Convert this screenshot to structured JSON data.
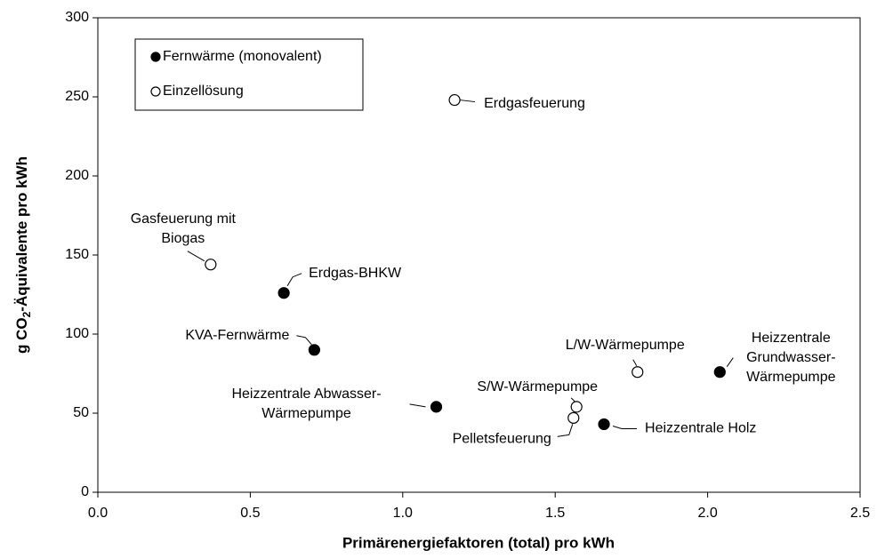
{
  "chart_data": {
    "type": "scatter",
    "xlabel": "Primärenergiefaktoren (total) pro kWh",
    "ylabel": [
      "g CO",
      "2",
      "-Äquivalente pro kWh"
    ],
    "xlim": [
      0,
      2.5
    ],
    "ylim": [
      0,
      300
    ],
    "xticks": [
      {
        "value": 0,
        "label": "0.0"
      },
      0.5,
      {
        "value": 1,
        "label": "1.0"
      },
      1.5,
      {
        "value": 2,
        "label": "2.0"
      },
      {
        "value": 2.5,
        "label": "2.5"
      }
    ],
    "yticks": [
      0,
      50,
      100,
      150,
      200,
      250,
      300
    ],
    "grid": false,
    "legend": "upper left",
    "series": [
      {
        "name": "Fernwärme (monovalent)",
        "color": "#000000",
        "filled": true,
        "x": [
          0.61,
          0.71,
          1.11,
          1.66,
          2.04
        ],
        "values": [
          126,
          90,
          54,
          43,
          76
        ],
        "labels": [
          [
            "Erdgas-BHKW"
          ],
          [
            "KVA-Fernwärme"
          ],
          [
            "Heizzentrale Abwasser-",
            "Wärmepumpe"
          ],
          [
            "Heizzentrale Holz"
          ],
          [
            "Heizzentrale",
            "Grundwasser-",
            "Wärmepumpe"
          ]
        ]
      },
      {
        "name": "Einzellösung",
        "color": "#000000",
        "filled": false,
        "x": [
          1.17,
          0.37,
          1.77,
          1.57,
          1.56
        ],
        "values": [
          248,
          144,
          76,
          54,
          47
        ],
        "labels": [
          [
            "Erdgasfeuerung"
          ],
          [
            "Gasfeuerung mit",
            "Biogas"
          ],
          [
            "L/W-Wärmepumpe"
          ],
          [
            "S/W-Wärmepumpe"
          ],
          [
            "Pelletsfeuerung"
          ]
        ]
      }
    ]
  }
}
